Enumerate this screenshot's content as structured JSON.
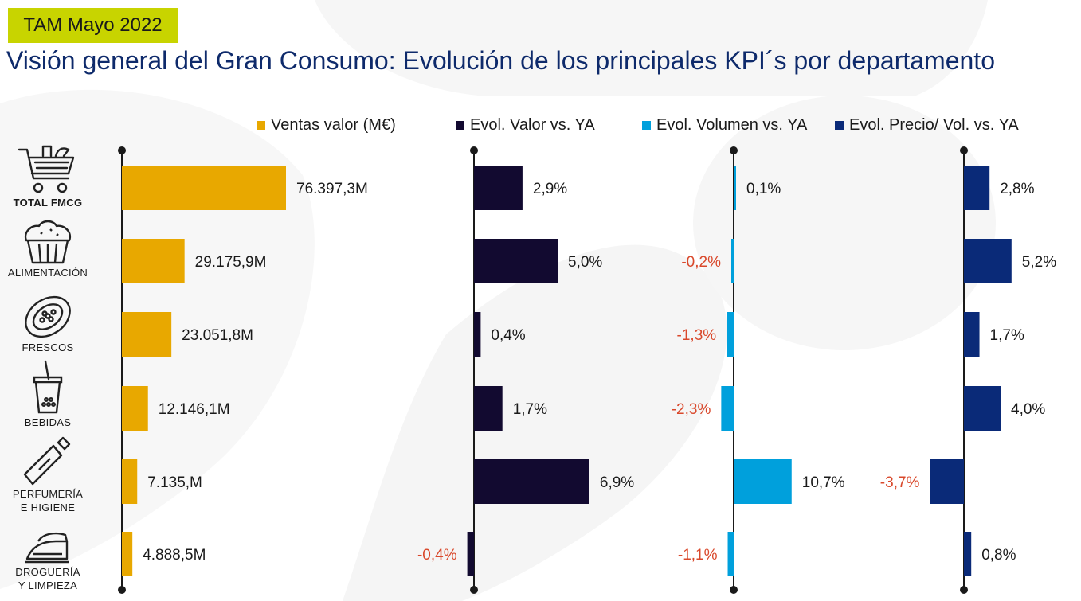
{
  "header": {
    "badge": "TAM Mayo 2022",
    "title": "Visión general del Gran Consumo: Evolución de los principales KPI´s por departamento"
  },
  "colors": {
    "badge": "#c8d400",
    "title": "#0e2a6b",
    "ventas": "#e8a800",
    "valor": "#120a30",
    "volumen": "#00a0dc",
    "precio": "#0a2a78",
    "negative_label": "#d9482b"
  },
  "categories": [
    {
      "label": "TOTAL FMCG",
      "icon": "shopping-cart-icon"
    },
    {
      "label": "ALIMENTACIÓN",
      "icon": "muffin-icon"
    },
    {
      "label": "FRESCOS",
      "icon": "papaya-icon"
    },
    {
      "label": "BEBIDAS",
      "icon": "drink-cup-icon"
    },
    {
      "label": "PERFUMERÍA\nE HIGIENE",
      "icon": "cream-tube-icon"
    },
    {
      "label": "DROGUERÍA\nY LIMPIEZA",
      "icon": "iron-icon"
    }
  ],
  "chart_data": {
    "type": "bar",
    "orientation": "horizontal",
    "categories": [
      "TOTAL FMCG",
      "ALIMENTACIÓN",
      "FRESCOS",
      "BEBIDAS",
      "PERFUMERÍA E HIGIENE",
      "DROGUERÍA Y LIMPIEZA"
    ],
    "series": [
      {
        "name": "Ventas valor (M€)",
        "values": [
          76397.3,
          29175.9,
          23051.8,
          12146.1,
          7135.0,
          4888.5
        ],
        "labels": [
          "76.397,3M",
          "29.175,9M",
          "23.051,8M",
          "12.146,1M",
          "7.135,M",
          "4.888,5M"
        ]
      },
      {
        "name": "Evol. Valor vs. YA",
        "values": [
          2.9,
          5.0,
          0.4,
          1.7,
          6.9,
          -0.4
        ],
        "labels": [
          "2,9%",
          "5,0%",
          "0,4%",
          "1,7%",
          "6,9%",
          "-0,4%"
        ]
      },
      {
        "name": "Evol. Volumen vs. YA",
        "values": [
          0.1,
          -0.2,
          -1.3,
          -2.3,
          10.7,
          -1.1
        ],
        "labels": [
          "0,1%",
          "-0,2%",
          "-1,3%",
          "-2,3%",
          "10,7%",
          "-1,1%"
        ]
      },
      {
        "name": "Evol. Precio/ Vol. vs. YA",
        "values": [
          2.8,
          5.2,
          1.7,
          4.0,
          -3.7,
          0.8
        ],
        "labels": [
          "2,8%",
          "5,2%",
          "1,7%",
          "4,0%",
          "-3,7%",
          "0,8%"
        ]
      }
    ],
    "legend_position": "top"
  }
}
